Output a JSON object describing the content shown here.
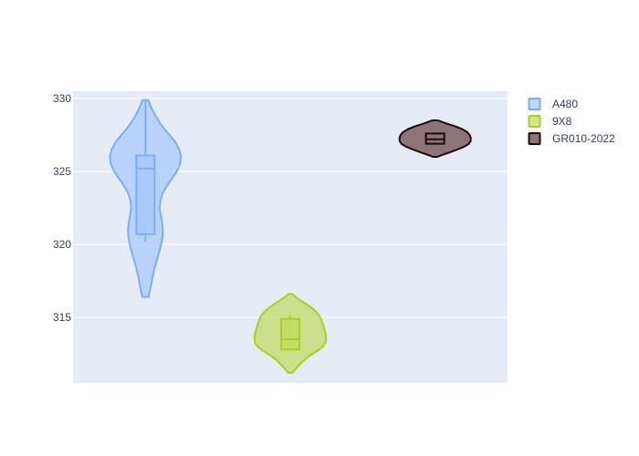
{
  "chart_data": {
    "type": "violin",
    "title": "",
    "xlabel": "",
    "ylabel": "",
    "ylim": [
      310.5,
      330.5
    ],
    "yticks": [
      315,
      320,
      325,
      330
    ],
    "grid": true,
    "legend_position": "top-right",
    "plot_bgcolor": "#e5ecf6",
    "series": [
      {
        "name": "A480",
        "color": "#7aaef7",
        "fill": "#a9cafa",
        "fill_opacity": 0.75,
        "box": {
          "q1": 320.7,
          "median": 325.2,
          "q3": 326.1,
          "whisker_low": 320.2,
          "whisker_high": 329.9
        },
        "density": [
          [
            329.9,
            0.08
          ],
          [
            329.5,
            0.14
          ],
          [
            329.0,
            0.24
          ],
          [
            328.5,
            0.36
          ],
          [
            328.0,
            0.5
          ],
          [
            327.5,
            0.68
          ],
          [
            327.0,
            0.84
          ],
          [
            326.5,
            0.95
          ],
          [
            326.0,
            1.0
          ],
          [
            325.5,
            0.97
          ],
          [
            325.0,
            0.88
          ],
          [
            324.5,
            0.74
          ],
          [
            324.0,
            0.6
          ],
          [
            323.5,
            0.48
          ],
          [
            323.0,
            0.42
          ],
          [
            322.5,
            0.4
          ],
          [
            322.0,
            0.43
          ],
          [
            321.5,
            0.47
          ],
          [
            321.0,
            0.49
          ],
          [
            320.5,
            0.48
          ],
          [
            320.0,
            0.44
          ],
          [
            319.5,
            0.39
          ],
          [
            319.0,
            0.33
          ],
          [
            318.5,
            0.27
          ],
          [
            318.0,
            0.22
          ],
          [
            317.5,
            0.18
          ],
          [
            317.0,
            0.14
          ],
          [
            316.4,
            0.09
          ]
        ]
      },
      {
        "name": "9X8",
        "color": "#a5d21e",
        "fill": "#c3dc67",
        "fill_opacity": 0.75,
        "box": {
          "q1": 312.8,
          "median": 313.5,
          "q3": 314.9,
          "whisker_low": 312.8,
          "whisker_high": 315.1
        },
        "density": [
          [
            316.6,
            0.06
          ],
          [
            316.3,
            0.2
          ],
          [
            316.0,
            0.4
          ],
          [
            315.7,
            0.58
          ],
          [
            315.4,
            0.72
          ],
          [
            315.1,
            0.82
          ],
          [
            314.8,
            0.88
          ],
          [
            314.5,
            0.92
          ],
          [
            314.2,
            0.96
          ],
          [
            313.9,
            0.99
          ],
          [
            313.6,
            1.0
          ],
          [
            313.3,
            1.0
          ],
          [
            313.0,
            0.92
          ],
          [
            312.7,
            0.76
          ],
          [
            312.4,
            0.56
          ],
          [
            312.1,
            0.4
          ],
          [
            311.8,
            0.28
          ],
          [
            311.5,
            0.16
          ],
          [
            311.2,
            0.06
          ]
        ]
      },
      {
        "name": "GR010-2022",
        "color": "#1e0a0a",
        "fill": "#8c7479",
        "fill_opacity": 1,
        "box": {
          "q1": 326.9,
          "median": 327.2,
          "q3": 327.6,
          "whisker_low": 326.9,
          "whisker_high": 327.6
        },
        "density": [
          [
            328.5,
            0.08
          ],
          [
            328.3,
            0.3
          ],
          [
            328.1,
            0.56
          ],
          [
            327.9,
            0.76
          ],
          [
            327.7,
            0.9
          ],
          [
            327.5,
            0.97
          ],
          [
            327.3,
            1.0
          ],
          [
            327.1,
            1.0
          ],
          [
            326.9,
            0.95
          ],
          [
            326.7,
            0.82
          ],
          [
            326.5,
            0.62
          ],
          [
            326.3,
            0.4
          ],
          [
            326.1,
            0.16
          ],
          [
            326.0,
            0.06
          ]
        ]
      }
    ]
  }
}
